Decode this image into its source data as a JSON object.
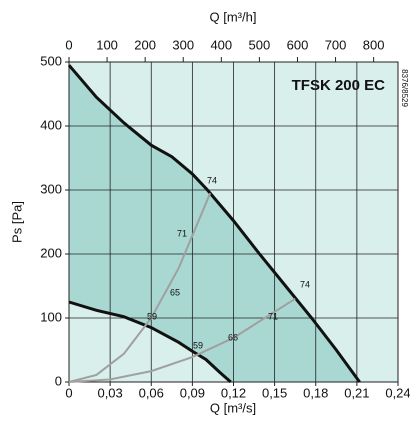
{
  "chart_data": {
    "type": "line",
    "title": "TFSK 200 EC",
    "code": "8376/8529",
    "x_label": "Q [m³/s]",
    "x2_label": "Q [m³/h]",
    "y_label": "Ps [Pa]",
    "xlim": [
      0,
      0.24
    ],
    "xticks": [
      0,
      {
        "value": 0.03,
        "label": "0,03"
      },
      {
        "value": 0.06,
        "label": "0,06"
      },
      {
        "value": 0.09,
        "label": "0,09"
      },
      {
        "value": 0.12,
        "label": "0,12"
      },
      {
        "value": 0.15,
        "label": "0,15"
      },
      {
        "value": 0.18,
        "label": "0,18"
      },
      {
        "value": 0.21,
        "label": "0,21"
      },
      {
        "value": 0.24,
        "label": "0,24"
      }
    ],
    "x2lim": [
      0,
      864
    ],
    "x2ticks": [
      0,
      100,
      200,
      300,
      400,
      500,
      600,
      700,
      800
    ],
    "ylim": [
      0,
      500
    ],
    "yticks": [
      0,
      100,
      200,
      300,
      400,
      500
    ],
    "grid": true,
    "background": "#d8efeb",
    "area_color": "#a8d8d1",
    "series": [
      {
        "color": "#111111",
        "x": [
          0,
          0.02,
          0.04,
          0.06,
          0.075,
          0.09,
          0.101,
          0.12,
          0.139,
          0.158,
          0.177,
          0.195,
          0.212
        ],
        "values": [
          495,
          445,
          405,
          370,
          352,
          325,
          300,
          252,
          200,
          150,
          100,
          50,
          0
        ]
      },
      {
        "color": "#111111",
        "x": [
          0,
          0.02,
          0.04,
          0.06,
          0.08,
          0.09,
          0.1,
          0.11,
          0.118
        ],
        "values": [
          125,
          112,
          102,
          85,
          62,
          48,
          35,
          15,
          0
        ]
      },
      {
        "color": "#a0a0a0",
        "x": [
          0,
          0.02,
          0.04,
          0.06,
          0.08,
          0.103
        ],
        "values": [
          0,
          11,
          44,
          100,
          178,
          295
        ]
      },
      {
        "color": "#a0a0a0",
        "x": [
          0,
          0.03,
          0.06,
          0.09,
          0.12,
          0.165
        ],
        "values": [
          0,
          4,
          17,
          39,
          69,
          130
        ]
      }
    ],
    "annotations": [
      "74",
      "71",
      "65",
      "59",
      "74",
      "71",
      "66",
      "59"
    ]
  }
}
